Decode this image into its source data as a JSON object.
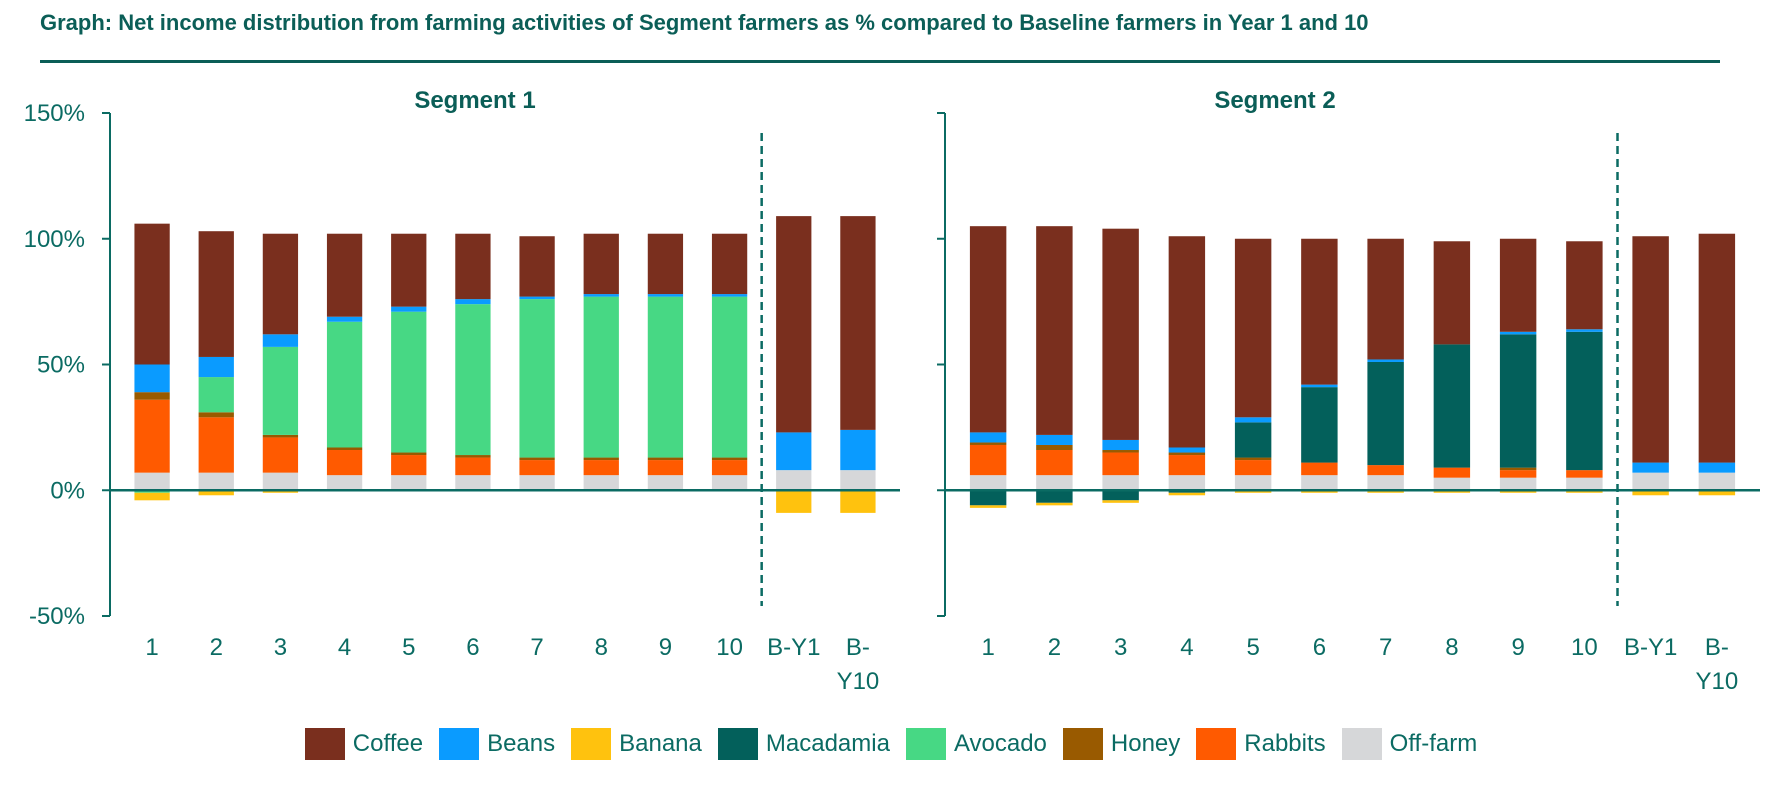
{
  "title": "Graph: Net income distribution from farming activities of Segment farmers as % compared to Baseline farmers in Year 1 and 10",
  "chart_data": [
    {
      "type": "bar",
      "stacked": true,
      "title": "Segment 1",
      "ylim": [
        -50,
        150
      ],
      "yticks": [
        "150%",
        "100%",
        "50%",
        "0%",
        "-50%"
      ],
      "ytick_values": [
        150,
        100,
        50,
        0,
        -50
      ],
      "categories": [
        "1",
        "2",
        "3",
        "4",
        "5",
        "6",
        "7",
        "8",
        "9",
        "10",
        "B-Y1",
        "B-Y10"
      ],
      "divider_after_index": 9,
      "series": [
        {
          "name": "Off-farm",
          "values": [
            7,
            7,
            7,
            6,
            6,
            6,
            6,
            6,
            6,
            6,
            8,
            8
          ]
        },
        {
          "name": "Rabbits",
          "values": [
            29,
            22,
            14,
            10,
            8,
            7,
            6,
            6,
            6,
            6,
            0,
            0
          ]
        },
        {
          "name": "Honey",
          "values": [
            3,
            2,
            1,
            1,
            1,
            1,
            1,
            1,
            1,
            1,
            0,
            0
          ]
        },
        {
          "name": "Avocado",
          "values": [
            -1,
            14,
            35,
            50,
            56,
            60,
            63,
            64,
            64,
            64,
            0,
            0
          ]
        },
        {
          "name": "Beans",
          "values": [
            11,
            8,
            5,
            2,
            2,
            2,
            1,
            1,
            1,
            1,
            15,
            16
          ]
        },
        {
          "name": "Banana",
          "values": [
            -3,
            -2,
            -1,
            0,
            0,
            0,
            0,
            0,
            0,
            0,
            -9,
            -9
          ]
        },
        {
          "name": "Macadamia",
          "values": [
            0,
            0,
            0,
            0,
            0,
            0,
            0,
            0,
            0,
            0,
            0,
            0
          ]
        },
        {
          "name": "Coffee",
          "values": [
            56,
            50,
            40,
            33,
            29,
            26,
            24,
            24,
            24,
            24,
            86,
            85
          ]
        }
      ]
    },
    {
      "type": "bar",
      "stacked": true,
      "title": "Segment 2",
      "ylim": [
        -50,
        150
      ],
      "yticks": [
        "150%",
        "100%",
        "50%",
        "0%",
        "-50%"
      ],
      "ytick_values": [
        150,
        100,
        50,
        0,
        -50
      ],
      "categories": [
        "1",
        "2",
        "3",
        "4",
        "5",
        "6",
        "7",
        "8",
        "9",
        "10",
        "B-Y1",
        "B-Y10"
      ],
      "divider_after_index": 9,
      "series": [
        {
          "name": "Off-farm",
          "values": [
            6,
            6,
            6,
            6,
            6,
            6,
            6,
            5,
            5,
            5,
            7,
            7
          ]
        },
        {
          "name": "Rabbits",
          "values": [
            12,
            10,
            9,
            8,
            6,
            5,
            4,
            4,
            3,
            3,
            0,
            0
          ]
        },
        {
          "name": "Honey",
          "values": [
            1,
            2,
            1,
            1,
            1,
            0,
            0,
            0,
            1,
            0,
            0,
            0
          ]
        },
        {
          "name": "Macadamia",
          "values": [
            -6,
            -5,
            -4,
            -1,
            14,
            30,
            41,
            49,
            53,
            55,
            0,
            0
          ]
        },
        {
          "name": "Beans",
          "values": [
            4,
            4,
            4,
            2,
            2,
            1,
            1,
            0,
            1,
            1,
            4,
            4
          ]
        },
        {
          "name": "Banana",
          "values": [
            -1,
            -1,
            -1,
            -1,
            -1,
            -1,
            -1,
            -1,
            -1,
            -1,
            -2,
            -2
          ]
        },
        {
          "name": "Avocado",
          "values": [
            0,
            0,
            0,
            0,
            0,
            0,
            0,
            0,
            0,
            0,
            0,
            0
          ]
        },
        {
          "name": "Coffee",
          "values": [
            82,
            83,
            84,
            84,
            71,
            58,
            48,
            41,
            37,
            35,
            90,
            91
          ]
        }
      ]
    }
  ],
  "legend": [
    {
      "name": "Coffee",
      "color": "#7a2f1e"
    },
    {
      "name": "Beans",
      "color": "#0a9bff"
    },
    {
      "name": "Banana",
      "color": "#ffc20e"
    },
    {
      "name": "Macadamia",
      "color": "#03605b"
    },
    {
      "name": "Avocado",
      "color": "#47d884"
    },
    {
      "name": "Honey",
      "color": "#995a00"
    },
    {
      "name": "Rabbits",
      "color": "#ff5a00"
    },
    {
      "name": "Off-farm",
      "color": "#d6d7d9"
    }
  ],
  "axis_color": "#0b6b63"
}
